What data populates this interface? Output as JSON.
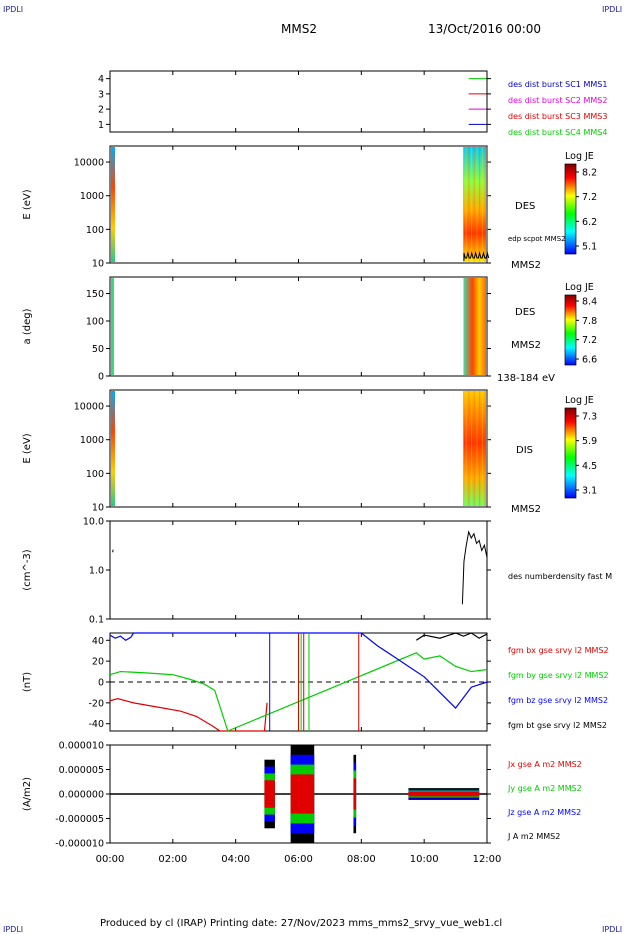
{
  "page": {
    "corner_tl": "IPDLI",
    "corner_tr": "IPDLI",
    "corner_bl": "IPDLI",
    "corner_br": "IPDLI",
    "spacecraft": "MMS2",
    "date": "13/Oct/2016 00:00",
    "footer": "Produced by cl (IRAP)   Printing date: 27/Nov/2023   mms_mms2_srvy_vue_web1.cl"
  },
  "colors": {
    "series_red": "#e00000",
    "series_green": "#00cc00",
    "series_blue": "#0000ff",
    "series_magenta": "#e000e0",
    "series_black": "#000000"
  },
  "chart_data": [
    {
      "type": "line",
      "panel": "burst-availability",
      "ylim": [
        0.5,
        4.5
      ],
      "yticks": [
        "1",
        "2",
        "3",
        "4"
      ],
      "legend": [
        {
          "label": "des dist burst SC1 MMS1",
          "color": "#0000c0"
        },
        {
          "label": "des dist burst SC2 MMS2",
          "color": "#e000e0"
        },
        {
          "label": "des dist burst SC3 MMS3",
          "color": "#e00000"
        },
        {
          "label": "des dist burst SC4 MMS4",
          "color": "#00cc00"
        }
      ],
      "series": [
        {
          "level": 4,
          "color": "#00cc00",
          "x": [
            "11:25",
            "11:59"
          ]
        },
        {
          "level": 3,
          "color": "#e00000",
          "x": [
            "11:25",
            "11:59"
          ]
        },
        {
          "level": 2,
          "color": "#e000e0",
          "x": [
            "11:25",
            "11:59"
          ]
        },
        {
          "level": 1,
          "color": "#0000c0",
          "x": [
            "11:25",
            "11:59"
          ]
        }
      ]
    },
    {
      "type": "heatmap",
      "panel": "des-energy-spectrogram",
      "ylabel": "E (eV)",
      "yscale": "log",
      "ylim": [
        10,
        30000
      ],
      "yticks": [
        "10",
        "100",
        "1000",
        "10000"
      ],
      "side_labels": [
        "DES",
        "edp scpot MMS2",
        "MMS2"
      ],
      "colorbar": {
        "title": "Log JE",
        "ticks": [
          "8.2",
          "7.2",
          "6.2",
          "5.1"
        ]
      }
    },
    {
      "type": "heatmap",
      "panel": "des-pitch-angle",
      "ylabel": "a (deg)",
      "ylim": [
        0,
        180
      ],
      "yticks": [
        "0",
        "50",
        "100",
        "150"
      ],
      "side_labels": [
        "DES",
        "MMS2",
        "138-184 eV"
      ],
      "colorbar": {
        "title": "Log JE",
        "ticks": [
          "8.4",
          "7.8",
          "7.2",
          "6.6"
        ]
      }
    },
    {
      "type": "heatmap",
      "panel": "dis-energy-spectrogram",
      "ylabel": "E (eV)",
      "yscale": "log",
      "ylim": [
        10,
        30000
      ],
      "yticks": [
        "10",
        "100",
        "1000",
        "10000"
      ],
      "side_labels": [
        "DIS",
        "MMS2"
      ],
      "colorbar": {
        "title": "Log JE",
        "ticks": [
          "7.3",
          "5.9",
          "4.5",
          "3.1"
        ]
      }
    },
    {
      "type": "line",
      "panel": "number-density",
      "ylabel": "(cm^-3)",
      "yscale": "log",
      "ylim": [
        0.1,
        10
      ],
      "yticks": [
        "0.1",
        "1.0",
        "10.0"
      ],
      "series": [
        {
          "name": "des numberdensity fast M",
          "color": "#000000",
          "x": [
            "00:05",
            "00:06",
            "11:13",
            "11:16",
            "11:20",
            "11:25",
            "11:30",
            "11:35",
            "11:40",
            "11:45",
            "11:50",
            "11:55",
            "12:00"
          ],
          "values": [
            2.3,
            2.6,
            0.2,
            1.5,
            3.0,
            6.0,
            4.5,
            5.5,
            3.5,
            4.0,
            2.5,
            3.2,
            1.8
          ]
        }
      ]
    },
    {
      "type": "line",
      "panel": "magnetic-field",
      "ylabel": "(nT)",
      "ylim": [
        -47,
        47
      ],
      "yticks": [
        "-40",
        "-20",
        "0",
        "20",
        "40"
      ],
      "series": [
        {
          "name": "fgm bx gse srvy l2 MMS2",
          "color": "#e00000",
          "x": [
            "00:00",
            "00:15",
            "00:45",
            "01:30",
            "02:15",
            "02:45",
            "03:15",
            "03:30",
            "04:55",
            "05:00"
          ],
          "values": [
            -18,
            -16,
            -20,
            -24,
            -28,
            -33,
            -42,
            -48,
            -48,
            -20
          ]
        },
        {
          "name": "fgm by gse srvy l2 MMS2",
          "color": "#00cc00",
          "x": [
            "00:00",
            "00:20",
            "01:00",
            "01:30",
            "02:00",
            "02:30",
            "03:00",
            "03:20",
            "03:45",
            "09:45",
            "10:00",
            "10:30",
            "11:00",
            "11:30",
            "12:00"
          ],
          "values": [
            7,
            10,
            9,
            8,
            7,
            3,
            -2,
            -8,
            -47,
            28,
            22,
            25,
            15,
            10,
            12
          ]
        },
        {
          "name": "fgm bz gse srvy l2 MMS2",
          "color": "#0000ff",
          "x": [
            "00:00",
            "00:10",
            "00:20",
            "00:30",
            "00:40",
            "00:45",
            "08:00",
            "08:30",
            "09:00",
            "09:30",
            "10:00",
            "10:30",
            "11:00",
            "11:30",
            "12:00"
          ],
          "values": [
            45,
            42,
            44,
            40,
            43,
            47,
            47,
            35,
            25,
            15,
            5,
            -10,
            -25,
            -5,
            0
          ]
        },
        {
          "name": "fgm bt gse srvy l2 MMS2",
          "color": "#000000",
          "x": [
            "09:45",
            "10:00",
            "10:30",
            "11:00",
            "11:15",
            "11:30",
            "11:45",
            "12:00"
          ],
          "values": [
            40,
            45,
            42,
            47,
            44,
            47,
            42,
            46
          ]
        }
      ]
    },
    {
      "type": "line",
      "panel": "current-density",
      "ylabel": "(A/m2)",
      "ylim": [
        -1e-05,
        1e-05
      ],
      "yticks": [
        "-0.000010",
        "-0.000005",
        "0.000000",
        "0.000005",
        "0.000010"
      ],
      "series": [
        {
          "name": "Jx gse A m2 MMS2",
          "color": "#e00000"
        },
        {
          "name": "Jy gse A m2 MMS2",
          "color": "#00cc00"
        },
        {
          "name": "Jz gse A m2 MMS2",
          "color": "#0000ff"
        },
        {
          "name": "J A m2 MMS2",
          "color": "#000000"
        }
      ],
      "bursts": [
        {
          "x": [
            "04:55",
            "05:15"
          ],
          "amplitude": 7e-06
        },
        {
          "x": [
            "05:45",
            "06:30"
          ],
          "amplitude": 1e-05
        },
        {
          "x": [
            "07:45",
            "07:50"
          ],
          "amplitude": 8e-06
        },
        {
          "x": [
            "09:30",
            "11:45"
          ],
          "amplitude": 1.2e-06
        }
      ]
    }
  ],
  "time_axis": {
    "range": [
      "00:00",
      "12:00"
    ],
    "ticks": [
      "00:00",
      "02:00",
      "04:00",
      "06:00",
      "08:00",
      "10:00",
      "12:00"
    ]
  }
}
